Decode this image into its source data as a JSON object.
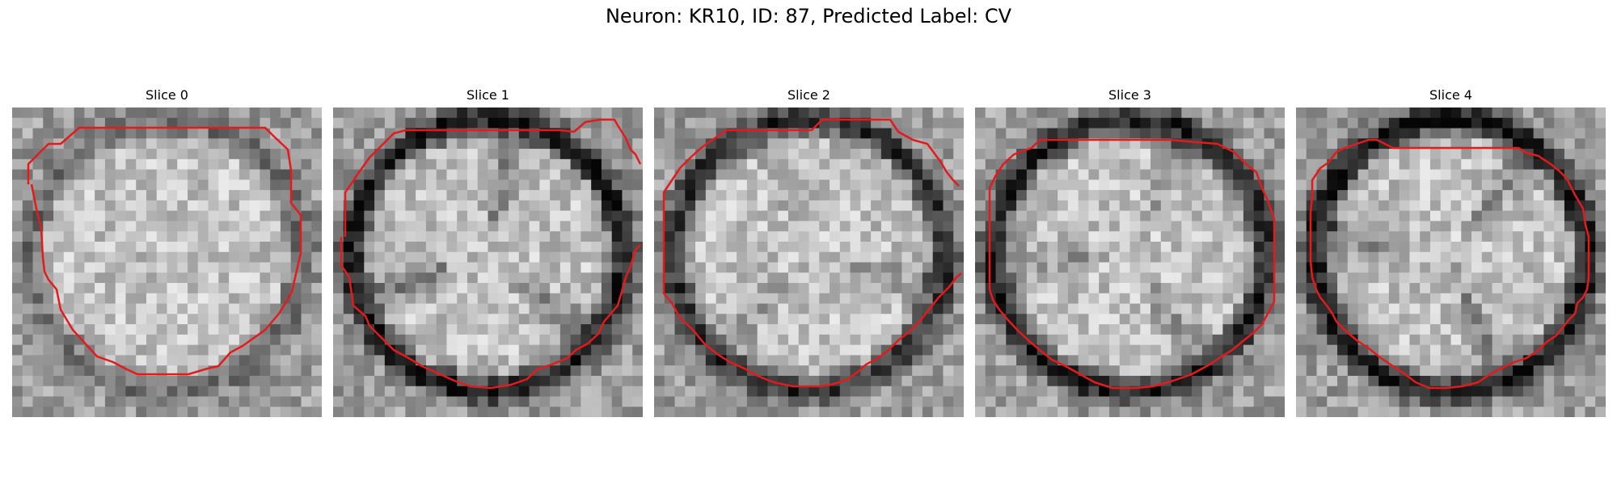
{
  "figure": {
    "title": "Neuron: KR10, ID: 87, Predicted Label: CV"
  },
  "panels": [
    {
      "label": "Slice 0",
      "seed": 11,
      "ring": 0.35,
      "lobes": 0.1,
      "pattern": "uniform"
    },
    {
      "label": "Slice 1",
      "seed": 23,
      "ring": 0.95,
      "lobes": 0.85,
      "pattern": "lobed"
    },
    {
      "label": "Slice 2",
      "seed": 37,
      "ring": 0.8,
      "lobes": 0.45,
      "pattern": "lobed"
    },
    {
      "label": "Slice 3",
      "seed": 41,
      "ring": 0.9,
      "lobes": 0.55,
      "pattern": "lobed"
    },
    {
      "label": "Slice 4",
      "seed": 53,
      "ring": 1.0,
      "lobes": 0.75,
      "pattern": "lobed"
    }
  ],
  "colors": {
    "contour": "#e41a1c",
    "background": "#ffffff"
  }
}
